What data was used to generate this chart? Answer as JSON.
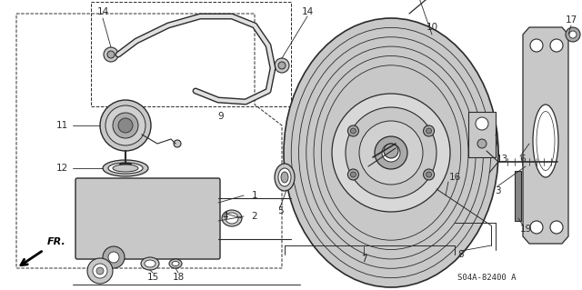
{
  "bg_color": "#ffffff",
  "line_color": "#2a2a2a",
  "part_number_text": "S04A-82400 A",
  "figsize": [
    6.4,
    3.19
  ],
  "dpi": 100,
  "gray_light": "#c8c8c8",
  "gray_mid": "#aaaaaa",
  "gray_dark": "#888888"
}
